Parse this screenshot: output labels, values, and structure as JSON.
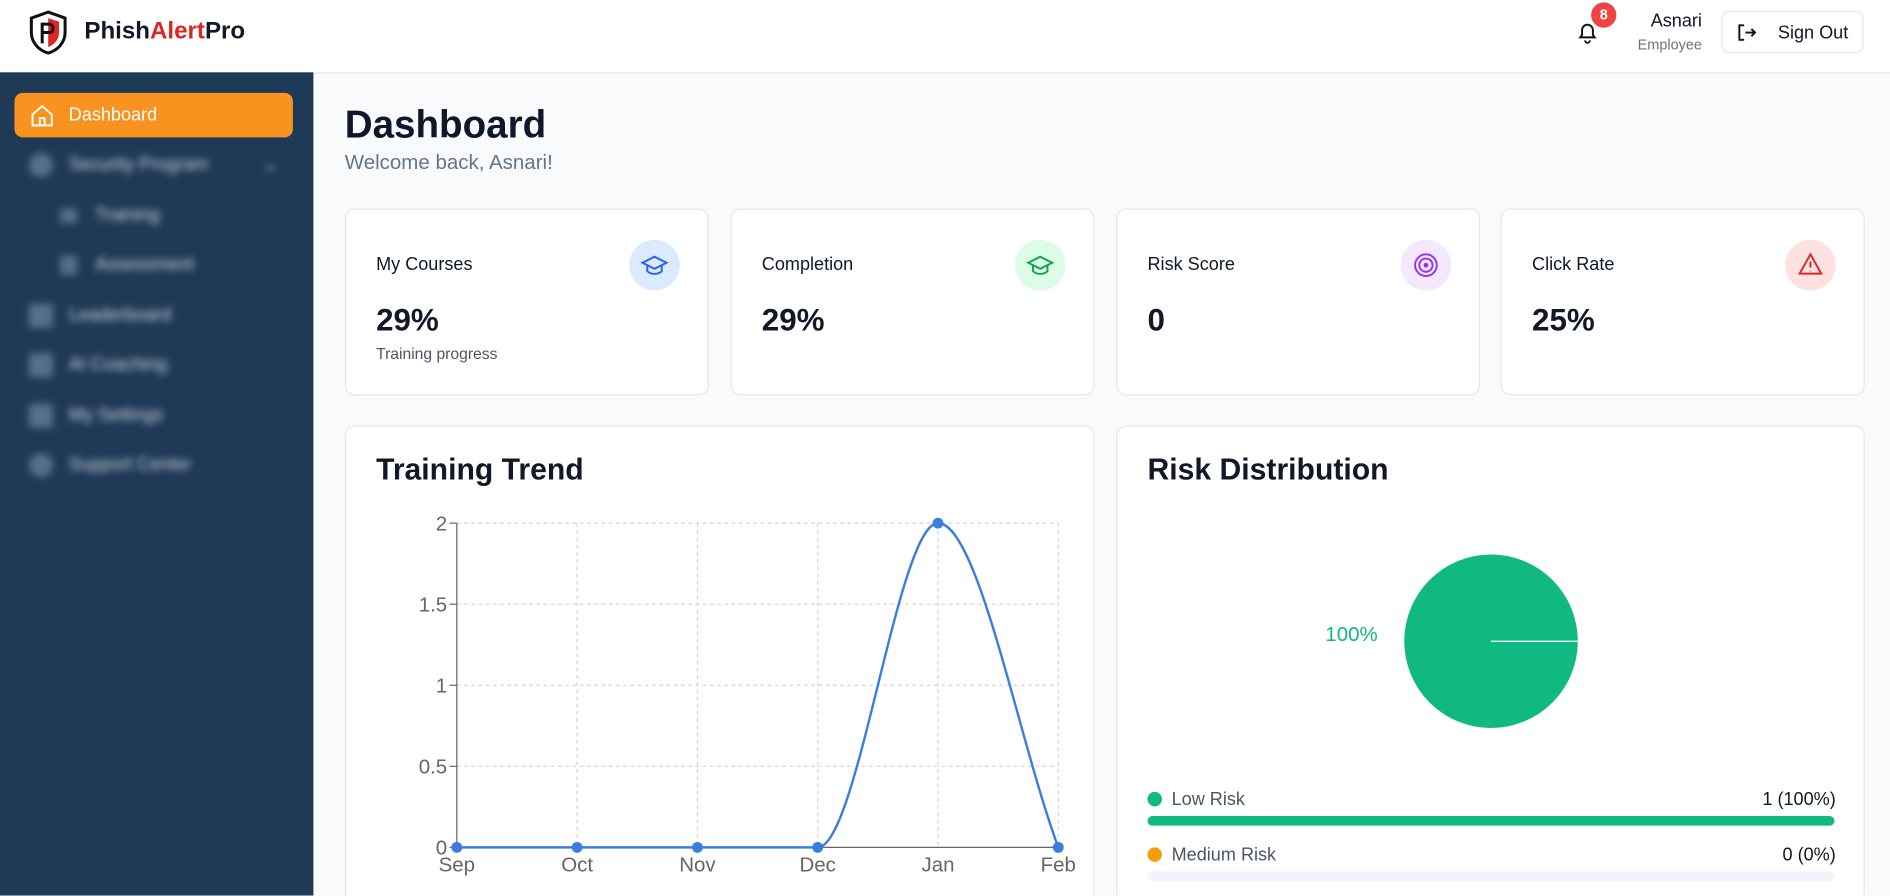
{
  "header": {
    "brand": [
      "Phish",
      "Alert",
      "Pro"
    ],
    "notifications": "8",
    "user_name": "Asnari",
    "user_role": "Employee",
    "sign_out": "Sign Out"
  },
  "sidebar": {
    "items": [
      "Dashboard",
      "Security Program",
      "Training",
      "Assessment",
      "Leaderboard",
      "AI Coaching",
      "My Settings",
      "Support Center"
    ]
  },
  "page": {
    "title": "Dashboard",
    "subtitle": "Welcome back, Asnari!"
  },
  "cards": [
    {
      "label": "My Courses",
      "value": "29%",
      "note": "Training progress"
    },
    {
      "label": "Completion",
      "value": "29%"
    },
    {
      "label": "Risk Score",
      "value": "0"
    },
    {
      "label": "Click Rate",
      "value": "25%"
    }
  ],
  "chart_data": [
    {
      "type": "line",
      "title": "Training Trend",
      "categories": [
        "Sep",
        "Oct",
        "Nov",
        "Dec",
        "Jan",
        "Feb"
      ],
      "series": [
        {
          "color": "#3b7ddd",
          "values": [
            0,
            0,
            0,
            0,
            2,
            0
          ]
        }
      ],
      "ylim": [
        0,
        2
      ],
      "yticks": [
        0,
        0.5,
        1,
        1.5,
        2
      ],
      "grid": true
    },
    {
      "type": "pie",
      "title": "Risk Distribution",
      "categories": [
        "Low Risk"
      ],
      "values": [
        100
      ],
      "value_labels": [
        "100%"
      ],
      "colors": [
        "#10b981"
      ]
    }
  ],
  "risk_breakdown": [
    {
      "label": "Low Risk",
      "text": "1 (100%)",
      "percent": 100,
      "color": "#10b981"
    },
    {
      "label": "Medium Risk",
      "text": "0 (0%)",
      "percent": 0,
      "color": "#f59e0b"
    }
  ]
}
